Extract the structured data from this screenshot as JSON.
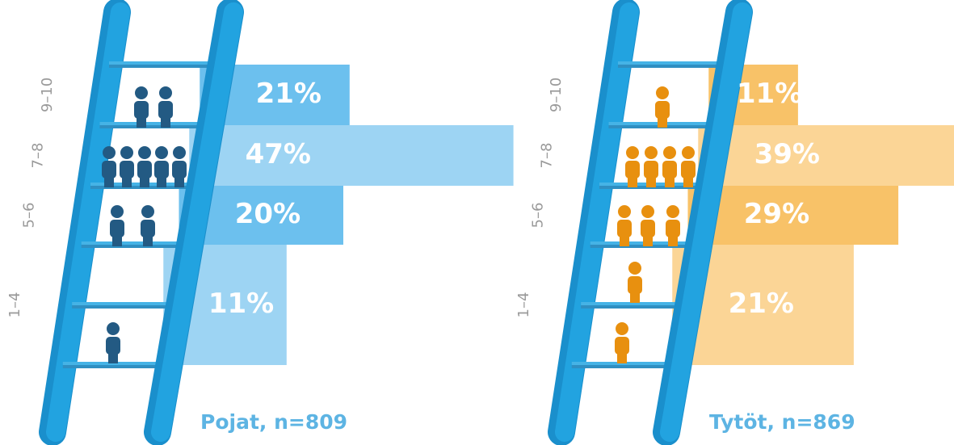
{
  "chart_data": [
    {
      "type": "bar",
      "caption": "Pojat, n=809",
      "categories": [
        "9–10",
        "7–8",
        "5–6",
        "1–4"
      ],
      "values": [
        21,
        47,
        20,
        11
      ],
      "value_labels": [
        "21%",
        "47%",
        "20%",
        "11%"
      ],
      "colors": [
        "#6cc0ee",
        "#9dd4f3",
        "#6cc0ee",
        "#9dd4f3"
      ],
      "icon_color": "#235a83",
      "caption_color": "#5db4e3"
    },
    {
      "type": "bar",
      "caption": "Tytöt, n=869",
      "categories": [
        "9–10",
        "7–8",
        "5–6",
        "1–4"
      ],
      "values": [
        11,
        39,
        29,
        21
      ],
      "value_labels": [
        "11%",
        "39%",
        "29%",
        "21%"
      ],
      "colors": [
        "#f8c268",
        "#fbd596",
        "#f8c268",
        "#fbd596"
      ],
      "icon_color": "#e8900f",
      "caption_color": "#5db4e3"
    }
  ]
}
